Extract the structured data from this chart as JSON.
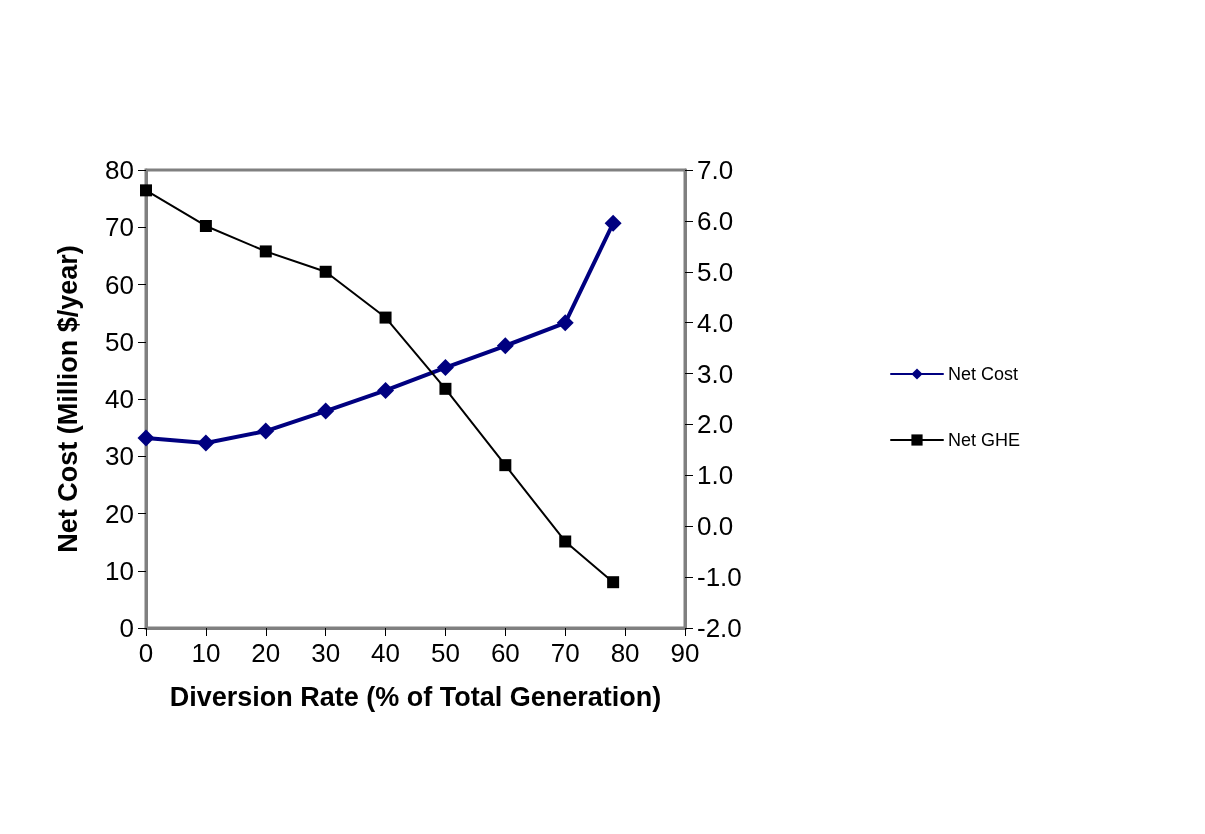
{
  "chart_data": {
    "type": "line",
    "xlabel": "Diversion Rate (% of Total Generation)",
    "ylabel": "Net Cost (Million $/year)",
    "x": [
      0,
      10,
      20,
      30,
      40,
      50,
      60,
      70,
      78
    ],
    "xlim": [
      0,
      90
    ],
    "xticks": [
      0,
      10,
      20,
      30,
      40,
      50,
      60,
      70,
      80,
      90
    ],
    "ylim": [
      0,
      80
    ],
    "yticks": [
      0,
      10,
      20,
      30,
      40,
      50,
      60,
      70,
      80
    ],
    "y2lim": [
      -2,
      7
    ],
    "y2ticks": [
      {
        "value": -2,
        "label": "-2.0"
      },
      {
        "value": -1,
        "label": "-1.0"
      },
      {
        "value": 0,
        "label": "0.0"
      },
      {
        "value": 1,
        "label": "1.0"
      },
      {
        "value": 2,
        "label": "2.0"
      },
      {
        "value": 3,
        "label": "3.0"
      },
      {
        "value": 4,
        "label": "4.0"
      },
      {
        "value": 5,
        "label": "5.0"
      },
      {
        "value": 6,
        "label": "6.0"
      },
      {
        "value": 7,
        "label": "7.0"
      }
    ],
    "series": [
      {
        "name": "Net Cost",
        "color": "#000080",
        "marker": "diamond",
        "values": [
          33.2,
          32.3,
          34.4,
          37.9,
          41.5,
          45.5,
          49.3,
          53.3,
          70.7
        ]
      },
      {
        "name": "Net GHE",
        "color": "#000000",
        "marker": "square",
        "axis": "y2",
        "values": [
          6.6,
          5.9,
          5.4,
          5.0,
          4.1,
          2.7,
          1.2,
          -0.3,
          -1.1
        ]
      }
    ],
    "grid": false,
    "legend": "right"
  }
}
